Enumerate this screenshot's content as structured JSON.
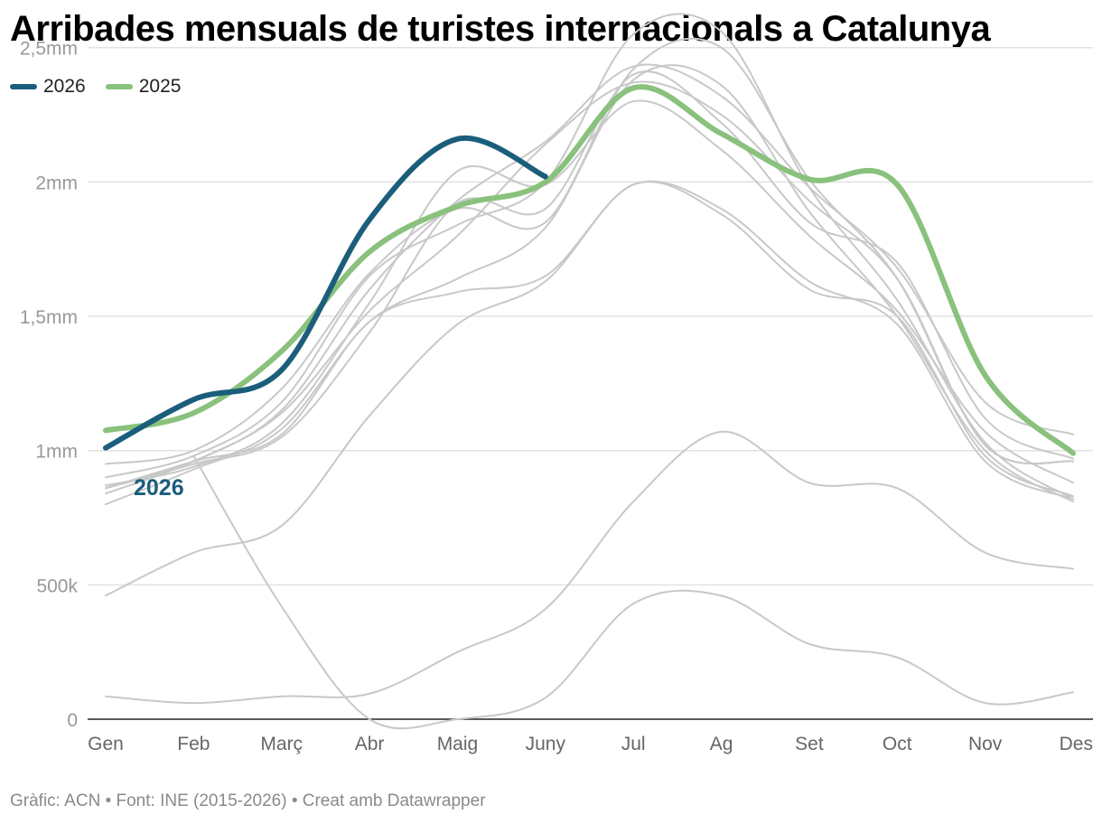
{
  "header": {
    "title": "Arribades mensuals de turistes internacionals a Catalunya"
  },
  "legend": [
    {
      "label": "2026",
      "color": "#1b5e7c"
    },
    {
      "label": "2025",
      "color": "#89c17d"
    }
  ],
  "footer": {
    "source": "Gràfic: ACN • Font: INE (2015-2026) • Creat amb Datawrapper"
  },
  "colors": {
    "background_series": "#c8c8c8",
    "gridline": "#e2e2e2",
    "axis": "#222222",
    "tick_label": "#999999",
    "category_label": "#666666"
  },
  "chart_data": {
    "type": "line",
    "title": "Arribades mensuals de turistes internacionals a Catalunya",
    "xlabel": "",
    "ylabel": "",
    "categories": [
      "Gen",
      "Feb",
      "Març",
      "Abr",
      "Maig",
      "Juny",
      "Jul",
      "Ag",
      "Set",
      "Oct",
      "Nov",
      "Des"
    ],
    "ylim": [
      0,
      2600000
    ],
    "yticks": [
      0,
      500000,
      1000000,
      1500000,
      2000000,
      2500000
    ],
    "ytick_labels": [
      "0",
      "500k",
      "1mm",
      "1,5mm",
      "2mm",
      "2,5mm"
    ],
    "grid": true,
    "legend_position": "top-left",
    "series": [
      {
        "name": "2026",
        "highlight": true,
        "color": "#1b5e7c",
        "inline_label": "2026",
        "values": [
          1010000,
          1190000,
          1300000,
          1860000,
          2160000,
          2020000,
          null,
          null,
          null,
          null,
          null,
          null
        ]
      },
      {
        "name": "2025",
        "highlight": true,
        "color": "#89c17d",
        "values": [
          1075000,
          1140000,
          1370000,
          1740000,
          1910000,
          2000000,
          2350000,
          2180000,
          2010000,
          1990000,
          1280000,
          990000
        ]
      },
      {
        "values": [
          950000,
          1000000,
          1230000,
          1660000,
          1900000,
          1850000,
          2420000,
          2500000,
          2010000,
          1640000,
          1020000,
          960000
        ]
      },
      {
        "values": [
          900000,
          980000,
          1180000,
          1650000,
          1840000,
          2000000,
          2550000,
          2560000,
          1980000,
          1560000,
          1030000,
          820000
        ]
      },
      {
        "values": [
          860000,
          960000,
          1150000,
          1600000,
          1930000,
          2150000,
          2430000,
          2320000,
          1980000,
          1680000,
          1180000,
          1060000
        ]
      },
      {
        "values": [
          870000,
          940000,
          1100000,
          1550000,
          2040000,
          1990000,
          2300000,
          2120000,
          1800000,
          1520000,
          1070000,
          880000
        ]
      },
      {
        "values": [
          840000,
          960000,
          1140000,
          1520000,
          1800000,
          2140000,
          2370000,
          2250000,
          1930000,
          1640000,
          1020000,
          960000
        ]
      },
      {
        "values": [
          800000,
          930000,
          1080000,
          1480000,
          1640000,
          1830000,
          2380000,
          2360000,
          1890000,
          1500000,
          1000000,
          810000
        ]
      },
      {
        "values": [
          860000,
          950000,
          1050000,
          1440000,
          1920000,
          1900000,
          2400000,
          2220000,
          1850000,
          1700000,
          1120000,
          970000
        ]
      },
      {
        "values": [
          860000,
          960000,
          1060000,
          1480000,
          1590000,
          1650000,
          1990000,
          1900000,
          1630000,
          1470000,
          960000,
          820000
        ]
      },
      {
        "values": [
          460000,
          620000,
          720000,
          1130000,
          1470000,
          1630000,
          1990000,
          1880000,
          1600000,
          1500000,
          980000,
          830000
        ]
      },
      {
        "values": [
          85000,
          60000,
          85000,
          95000,
          250000,
          410000,
          810000,
          1070000,
          880000,
          860000,
          620000,
          560000
        ]
      },
      {
        "values": [
          null,
          980000,
          420000,
          0,
          0,
          80000,
          430000,
          460000,
          280000,
          230000,
          60000,
          100000
        ]
      }
    ]
  }
}
